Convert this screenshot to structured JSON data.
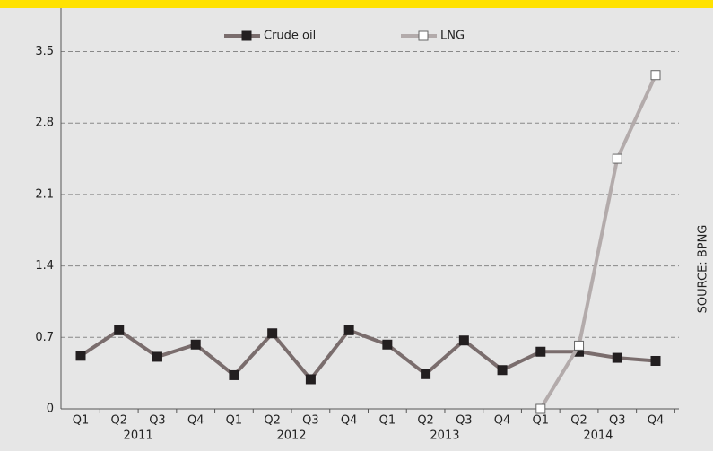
{
  "chart_data": {
    "type": "line",
    "categories": [
      "Q1",
      "Q2",
      "Q3",
      "Q4",
      "Q1",
      "Q2",
      "Q3",
      "Q4",
      "Q1",
      "Q2",
      "Q3",
      "Q4",
      "Q1",
      "Q2",
      "Q3",
      "Q4"
    ],
    "groups": [
      "2011",
      "2012",
      "2013",
      "2014"
    ],
    "series": [
      {
        "name": "Crude oil",
        "color": "#7a6d6d",
        "marker_color": "#231f20",
        "values": [
          0.52,
          0.77,
          0.51,
          0.63,
          0.33,
          0.74,
          0.29,
          0.77,
          0.63,
          0.34,
          0.67,
          0.38,
          0.56,
          0.56,
          0.5,
          0.47
        ]
      },
      {
        "name": "LNG",
        "color": "#b3abab",
        "marker_color": "#ffffff",
        "values": [
          null,
          null,
          null,
          null,
          null,
          null,
          null,
          null,
          null,
          null,
          null,
          null,
          0,
          0.62,
          2.45,
          3.27
        ]
      }
    ],
    "ylim": [
      0,
      3.9
    ],
    "yticks": [
      0,
      0.7,
      1.4,
      2.1,
      2.8,
      3.5
    ],
    "grid": true,
    "source": "SOURCE: BPNG"
  }
}
